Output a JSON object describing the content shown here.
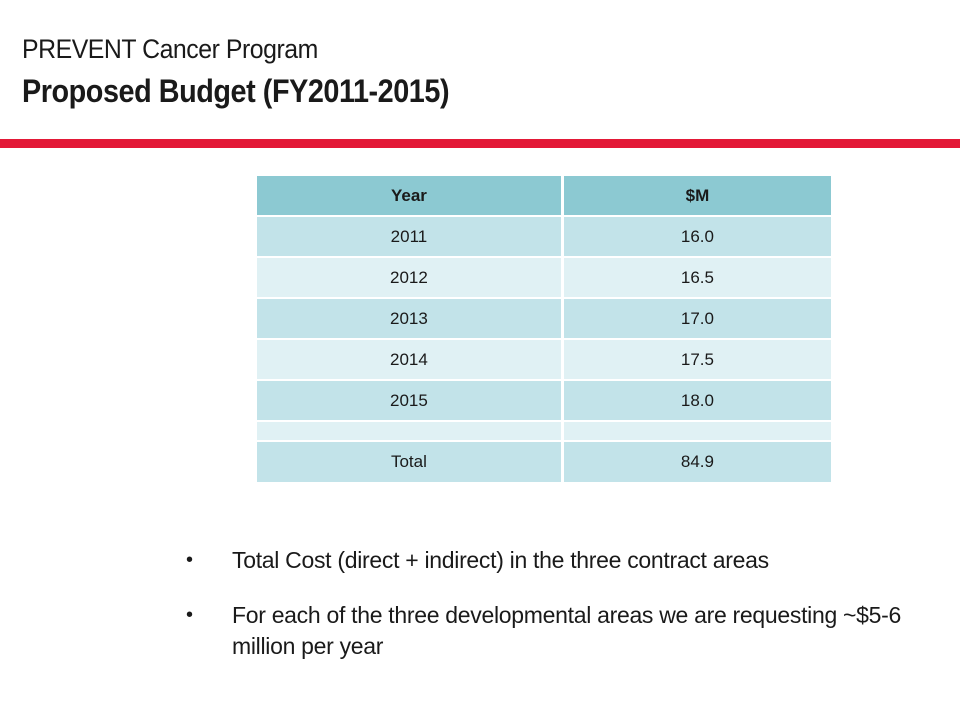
{
  "header": {
    "program": "PREVENT Cancer Program",
    "title": "Proposed Budget (FY2011-2015)"
  },
  "colors": {
    "accent_rule": "#e31937",
    "table_header": "#8cc9d2",
    "row_dark": "#c2e3e9",
    "row_light": "#e0f1f4"
  },
  "table": {
    "headers": [
      "Year",
      "$M"
    ],
    "rows": [
      [
        "2011",
        "16.0"
      ],
      [
        "2012",
        "16.5"
      ],
      [
        "2013",
        "17.0"
      ],
      [
        "2014",
        "17.5"
      ],
      [
        "2015",
        "18.0"
      ],
      [
        "",
        ""
      ],
      [
        "Total",
        "84.9"
      ]
    ]
  },
  "bullets": [
    "Total Cost (direct + indirect) in the three contract areas",
    "For each of the three developmental areas we are requesting ~$5-6 million per year"
  ]
}
